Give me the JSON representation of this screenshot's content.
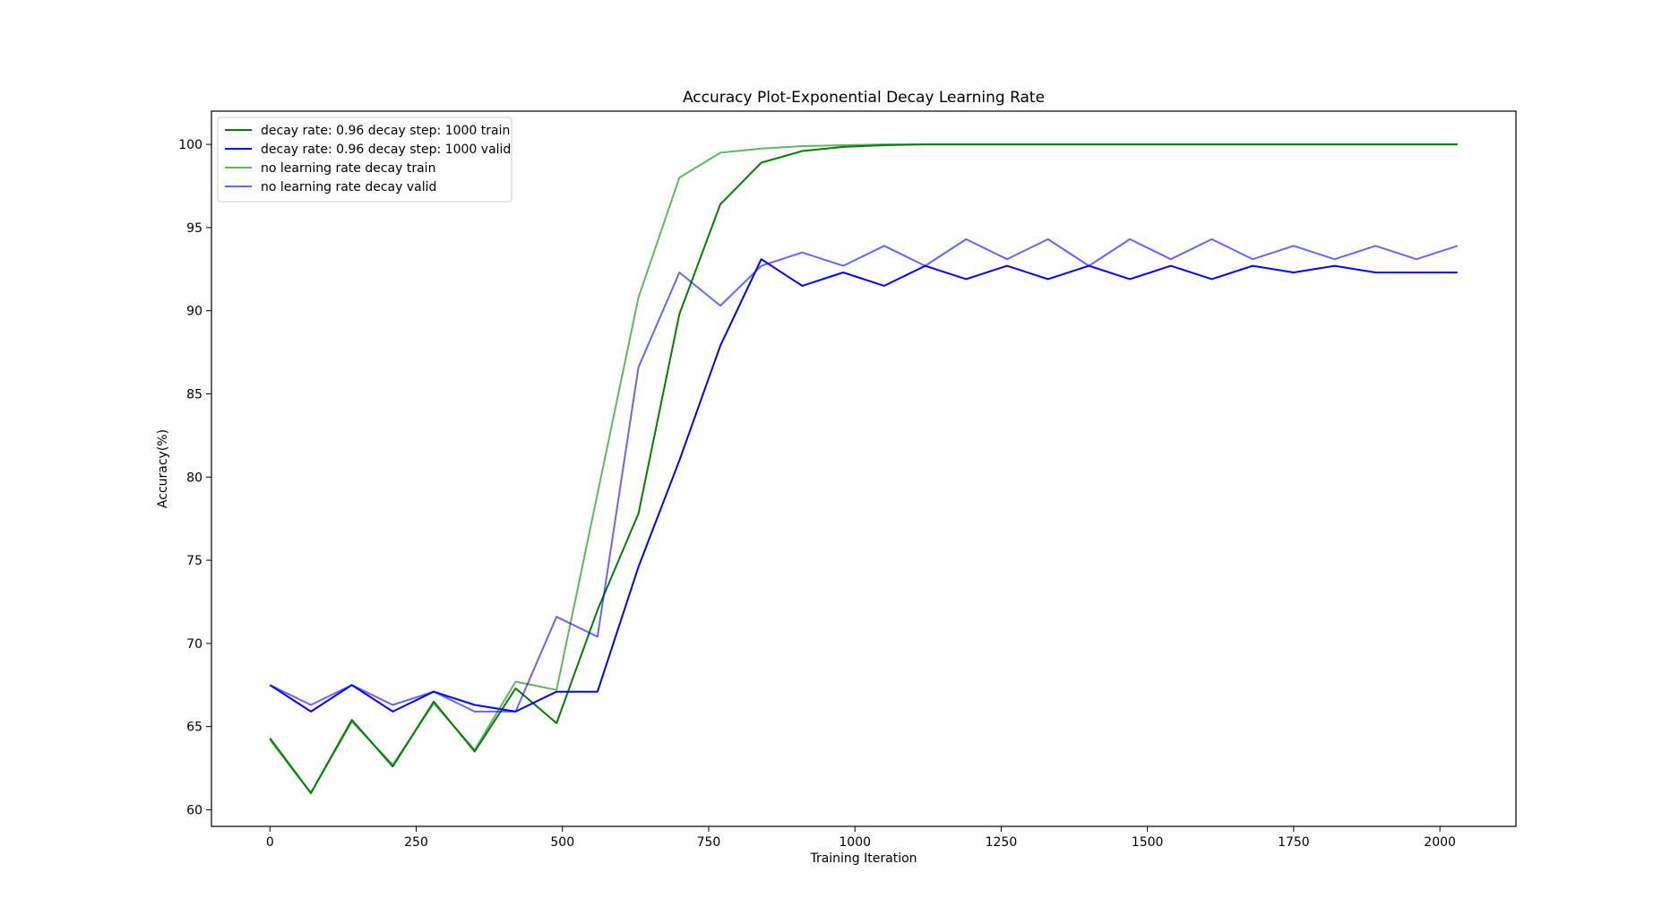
{
  "chart_data": {
    "type": "line",
    "title": "Accuracy Plot-Exponential Decay Learning Rate",
    "xlabel": "Training Iteration",
    "ylabel": "Accuracy(%)",
    "xlim": [
      -100,
      2130
    ],
    "ylim": [
      59,
      102
    ],
    "xticks": [
      0,
      250,
      500,
      750,
      1000,
      1250,
      1500,
      1750,
      2000
    ],
    "yticks": [
      60,
      65,
      70,
      75,
      80,
      85,
      90,
      95,
      100
    ],
    "grid": false,
    "legend_position": "top-left",
    "x": [
      0,
      70,
      140,
      210,
      280,
      350,
      420,
      490,
      560,
      630,
      700,
      770,
      840,
      910,
      980,
      1050,
      1120,
      1190,
      1260,
      1330,
      1400,
      1470,
      1540,
      1610,
      1680,
      1750,
      1820,
      1890,
      1960,
      2030
    ],
    "series": [
      {
        "name": "decay rate: 0.96 decay step: 1000 train",
        "color": "#008000",
        "opacity": 1.0,
        "width": 2,
        "values": [
          64.3,
          61.0,
          65.4,
          62.6,
          66.5,
          63.5,
          67.3,
          65.2,
          72.0,
          77.8,
          89.8,
          96.4,
          98.9,
          99.6,
          99.85,
          99.95,
          100,
          100,
          100,
          100,
          100,
          100,
          100,
          100,
          100,
          100,
          100,
          100,
          100,
          100
        ]
      },
      {
        "name": "decay rate: 0.96 decay step: 1000 valid",
        "color": "#0000ff",
        "opacity": 1.0,
        "width": 2,
        "values": [
          67.5,
          65.9,
          67.5,
          65.9,
          67.1,
          66.3,
          65.9,
          67.1,
          67.1,
          74.6,
          81.0,
          87.9,
          93.1,
          91.5,
          92.3,
          91.5,
          92.7,
          91.9,
          92.7,
          91.9,
          92.7,
          91.9,
          92.7,
          91.9,
          92.7,
          92.3,
          92.7,
          92.3,
          92.3,
          92.3
        ]
      },
      {
        "name": "no learning rate decay train",
        "color": "#008000",
        "opacity": 0.6,
        "width": 2,
        "values": [
          64.2,
          61.0,
          65.3,
          62.7,
          66.4,
          63.6,
          67.7,
          67.2,
          79.0,
          90.8,
          98.0,
          99.5,
          99.75,
          99.9,
          99.95,
          100,
          100,
          100,
          100,
          100,
          100,
          100,
          100,
          100,
          100,
          100,
          100,
          100,
          100,
          100
        ]
      },
      {
        "name": "no learning rate decay valid",
        "color": "#0000ff",
        "opacity": 0.6,
        "width": 2,
        "values": [
          67.5,
          66.3,
          67.5,
          66.3,
          67.1,
          65.9,
          65.9,
          71.6,
          70.4,
          86.6,
          92.3,
          90.3,
          92.7,
          93.5,
          92.7,
          93.9,
          92.7,
          94.3,
          93.1,
          94.3,
          92.7,
          94.3,
          93.1,
          94.3,
          93.1,
          93.9,
          93.1,
          93.9,
          93.1,
          93.9
        ]
      }
    ]
  }
}
